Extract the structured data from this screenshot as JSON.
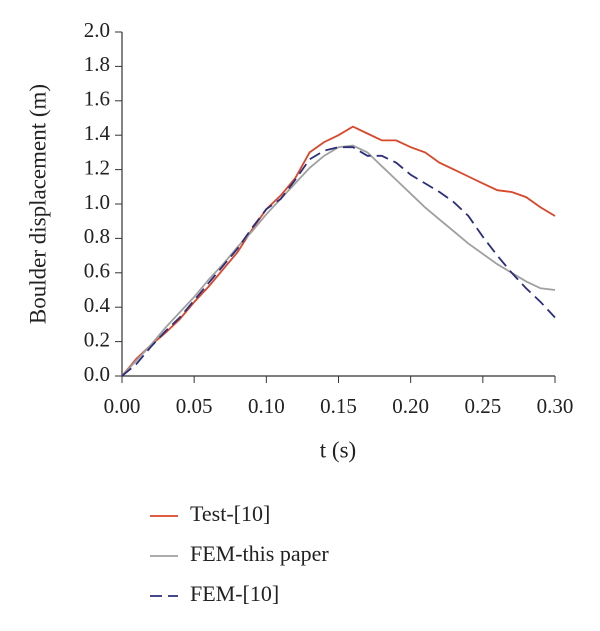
{
  "chart_data": {
    "type": "line",
    "xlabel": "t (s)",
    "ylabel": "Boulder displacement (m)",
    "xlim": [
      0,
      0.3
    ],
    "ylim": [
      0,
      2.0
    ],
    "xticks": [
      {
        "value": 0,
        "label": "0.00"
      },
      0.05,
      {
        "value": 0.1,
        "label": "0.10"
      },
      0.15,
      {
        "value": 0.2,
        "label": "0.20"
      },
      0.25,
      {
        "value": 0.3,
        "label": "0.30"
      }
    ],
    "yticks": [
      {
        "value": 0,
        "label": "0.0"
      },
      0.2,
      0.4,
      0.6,
      0.8,
      {
        "value": 1,
        "label": "1.0"
      },
      1.2,
      1.4,
      1.6,
      1.8,
      {
        "value": 2,
        "label": "2.0"
      }
    ],
    "x": [
      0,
      0.01,
      0.02,
      0.03,
      0.04,
      0.05,
      0.06,
      0.07,
      0.08,
      0.09,
      0.1,
      0.11,
      0.12,
      0.13,
      0.14,
      0.15,
      0.16,
      0.17,
      0.18,
      0.19,
      0.2,
      0.21,
      0.22,
      0.23,
      0.24,
      0.25,
      0.26,
      0.27,
      0.28,
      0.29,
      0.3
    ],
    "legend": "bottom",
    "series": [
      {
        "name": "Test-[10]",
        "color": "#d9462a",
        "linestyle": "solid",
        "values": [
          0,
          0.1,
          0.18,
          0.25,
          0.33,
          0.43,
          0.52,
          0.62,
          0.72,
          0.85,
          0.97,
          1.05,
          1.15,
          1.3,
          1.36,
          1.4,
          1.45,
          1.41,
          1.37,
          1.37,
          1.33,
          1.3,
          1.24,
          1.2,
          1.16,
          1.12,
          1.08,
          1.07,
          1.04,
          0.98,
          0.93
        ]
      },
      {
        "name": "FEM-this paper",
        "color": "#a0a0a0",
        "linestyle": "solid",
        "values": [
          0,
          0.09,
          0.18,
          0.28,
          0.37,
          0.46,
          0.56,
          0.65,
          0.75,
          0.84,
          0.94,
          1.03,
          1.12,
          1.21,
          1.28,
          1.33,
          1.34,
          1.3,
          1.22,
          1.14,
          1.06,
          0.98,
          0.91,
          0.84,
          0.77,
          0.71,
          0.65,
          0.6,
          0.55,
          0.51,
          0.5
        ]
      },
      {
        "name": "FEM-[10]",
        "color": "#2b2f7a",
        "linestyle": "dashed",
        "values": [
          0,
          0.07,
          0.17,
          0.26,
          0.34,
          0.44,
          0.54,
          0.64,
          0.74,
          0.86,
          0.97,
          1.03,
          1.14,
          1.26,
          1.31,
          1.33,
          1.33,
          1.28,
          1.28,
          1.24,
          1.17,
          1.12,
          1.07,
          1.01,
          0.93,
          0.81,
          0.7,
          0.6,
          0.51,
          0.43,
          0.34
        ]
      }
    ]
  }
}
